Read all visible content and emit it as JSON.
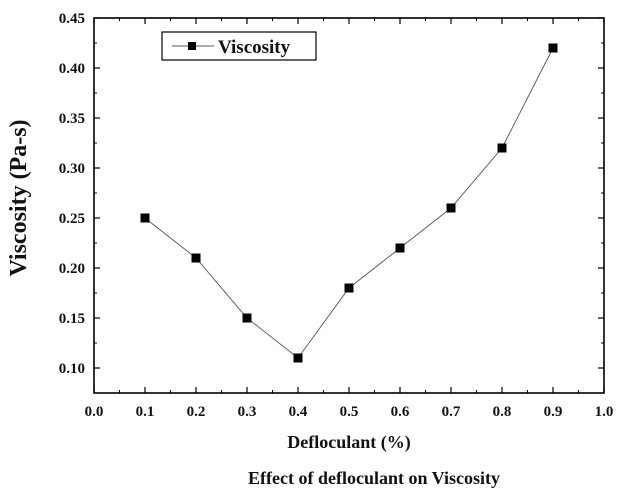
{
  "chart_data": {
    "type": "line",
    "title": "",
    "xlabel": "Defloculant (%)",
    "ylabel": "Viscosity (Pa-s)",
    "caption": "Effect of defloculant on Viscosity",
    "xlim": [
      0.0,
      1.0
    ],
    "ylim": [
      0.075,
      0.45
    ],
    "xticks": [
      "0.0",
      "0.1",
      "0.2",
      "0.3",
      "0.4",
      "0.5",
      "0.6",
      "0.7",
      "0.8",
      "0.9",
      "1.0"
    ],
    "yticks": [
      "0.10",
      "0.15",
      "0.20",
      "0.25",
      "0.30",
      "0.35",
      "0.40",
      "0.45"
    ],
    "legend_position": "top-left",
    "series": [
      {
        "name": "Viscosity",
        "marker": "square",
        "x": [
          0.1,
          0.2,
          0.3,
          0.4,
          0.5,
          0.6,
          0.7,
          0.8,
          0.9
        ],
        "values": [
          0.25,
          0.21,
          0.15,
          0.11,
          0.18,
          0.22,
          0.26,
          0.32,
          0.42
        ]
      }
    ],
    "colors": {
      "line": "#555555",
      "marker": "#000000",
      "axis": "#000000"
    }
  }
}
